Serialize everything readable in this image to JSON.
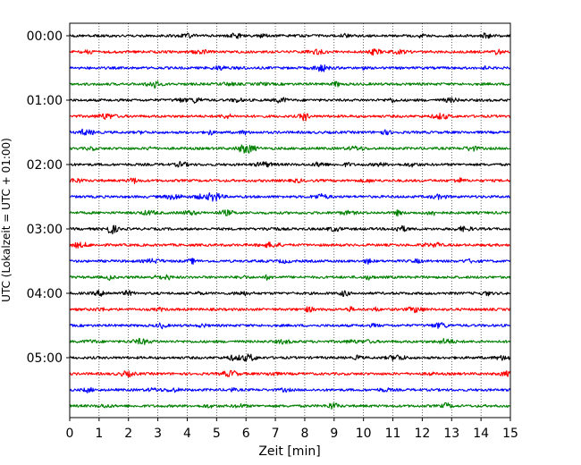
{
  "chart_data": {
    "type": "line",
    "title": "",
    "xlabel": "Zeit  [min]",
    "ylabel": "UTC (Lokalzeit = UTC + 01:00)",
    "xlim": [
      0,
      15
    ],
    "x_ticks": [
      "0",
      "1",
      "2",
      "3",
      "4",
      "5",
      "6",
      "7",
      "8",
      "9",
      "10",
      "11",
      "12",
      "13",
      "14",
      "15"
    ],
    "y_ticks": [
      "00:00",
      "01:00",
      "02:00",
      "03:00",
      "04:00",
      "05:00"
    ],
    "grid": "vertical dotted at each minute",
    "trace_interval_minutes": 15,
    "series": [
      {
        "start": "00:00",
        "color": "#000000"
      },
      {
        "start": "00:15",
        "color": "#ff0000"
      },
      {
        "start": "00:30",
        "color": "#0000ff"
      },
      {
        "start": "00:45",
        "color": "#008000"
      },
      {
        "start": "01:00",
        "color": "#000000"
      },
      {
        "start": "01:15",
        "color": "#ff0000"
      },
      {
        "start": "01:30",
        "color": "#0000ff"
      },
      {
        "start": "01:45",
        "color": "#008000"
      },
      {
        "start": "02:00",
        "color": "#000000"
      },
      {
        "start": "02:15",
        "color": "#ff0000"
      },
      {
        "start": "02:30",
        "color": "#0000ff"
      },
      {
        "start": "02:45",
        "color": "#008000"
      },
      {
        "start": "03:00",
        "color": "#000000"
      },
      {
        "start": "03:15",
        "color": "#ff0000"
      },
      {
        "start": "03:30",
        "color": "#0000ff"
      },
      {
        "start": "03:45",
        "color": "#008000"
      },
      {
        "start": "04:00",
        "color": "#000000"
      },
      {
        "start": "04:15",
        "color": "#ff0000"
      },
      {
        "start": "04:30",
        "color": "#0000ff"
      },
      {
        "start": "04:45",
        "color": "#008000"
      },
      {
        "start": "05:00",
        "color": "#000000"
      },
      {
        "start": "05:15",
        "color": "#ff0000"
      },
      {
        "start": "05:30",
        "color": "#0000ff"
      },
      {
        "start": "05:45",
        "color": "#008000"
      }
    ]
  }
}
